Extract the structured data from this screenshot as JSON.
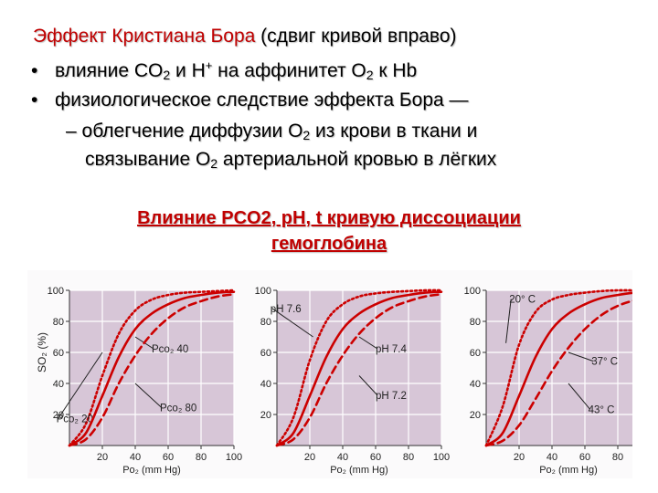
{
  "title": {
    "red": "Эффект Кристиана Бора",
    "black": "(сдвиг кривой вправо)"
  },
  "bullets": [
    {
      "marker": "•",
      "parts": [
        "влияние CO",
        "2",
        " и H",
        "+",
        " на аффинитет O",
        "2",
        " к Hb"
      ]
    },
    {
      "marker": "•",
      "parts": [
        "физиологическое следствие эффекта Бора —"
      ]
    }
  ],
  "subbullet": {
    "marker": "–",
    "line1": [
      "облегчение диффузии O",
      "2",
      " из крови в ткани и"
    ],
    "line2": [
      "связывание O",
      "2",
      " артериальной кровью в лёгких"
    ]
  },
  "subheading": {
    "line1": "Влияние PCO2, pH, t  кривую диссоциации",
    "line2": "гемоглобина"
  },
  "colors": {
    "title_red": "#c00000",
    "curve_red": "#cc0000",
    "panel_bg": "#d7c6d7"
  },
  "figure": {
    "ylabel": "SO₂ (%)",
    "xlabel": "Po₂ (mm Hg)",
    "x_ticks": [
      "20",
      "40",
      "60",
      "80",
      "100"
    ],
    "y_ticks": [
      "20",
      "40",
      "60",
      "80",
      "100"
    ]
  },
  "chart_data": [
    {
      "type": "line",
      "x": [
        0,
        10,
        20,
        30,
        40,
        50,
        60,
        70,
        80,
        90,
        100
      ],
      "xlim": [
        0,
        100
      ],
      "ylim": [
        0,
        100
      ],
      "xlabel": "Po₂ (mm Hg)",
      "ylabel": "SO₂ (%)",
      "series": [
        {
          "name": "Pco₂ 20",
          "style": "dotted",
          "values": [
            0,
            14,
            45,
            72,
            87,
            94,
            97,
            98.5,
            99,
            99.5,
            100
          ]
        },
        {
          "name": "Pco₂ 40",
          "style": "solid",
          "values": [
            0,
            8,
            32,
            57,
            75,
            85,
            91,
            95,
            97,
            98.5,
            99
          ]
        },
        {
          "name": "Pco₂ 80",
          "style": "dashed",
          "values": [
            0,
            4,
            18,
            40,
            58,
            72,
            82,
            89,
            93,
            96,
            97.5
          ]
        }
      ]
    },
    {
      "type": "line",
      "x": [
        0,
        10,
        20,
        30,
        40,
        50,
        60,
        70,
        80,
        90,
        100
      ],
      "xlim": [
        0,
        100
      ],
      "ylim": [
        0,
        100
      ],
      "xlabel": "Po₂ (mm Hg)",
      "ylabel": "",
      "series": [
        {
          "name": "pH 7.6",
          "style": "dotted",
          "values": [
            0,
            18,
            55,
            80,
            91,
            96,
            98,
            99,
            99.5,
            100,
            100
          ]
        },
        {
          "name": "pH 7.4",
          "style": "solid",
          "values": [
            0,
            8,
            32,
            57,
            75,
            85,
            91,
            95,
            97,
            98.5,
            99
          ]
        },
        {
          "name": "pH 7.2",
          "style": "dashed",
          "values": [
            0,
            4,
            18,
            40,
            58,
            72,
            82,
            89,
            93,
            96,
            97.5
          ]
        }
      ]
    },
    {
      "type": "line",
      "x": [
        0,
        10,
        20,
        30,
        40,
        50,
        60,
        70,
        80,
        90,
        100
      ],
      "xlim": [
        0,
        100
      ],
      "ylim": [
        0,
        100
      ],
      "xlabel": "Po₂ (mm Hg)",
      "ylabel": "",
      "series": [
        {
          "name": "20° C",
          "style": "dotted",
          "values": [
            0,
            25,
            65,
            86,
            94,
            97,
            98.5,
            99.5,
            100,
            100,
            100
          ]
        },
        {
          "name": "37° C",
          "style": "solid",
          "values": [
            0,
            8,
            32,
            57,
            75,
            85,
            91,
            95,
            97,
            98.5,
            99
          ]
        },
        {
          "name": "43° C",
          "style": "dashed",
          "values": [
            0,
            3,
            13,
            30,
            48,
            63,
            75,
            84,
            90,
            93.5,
            96
          ]
        }
      ]
    }
  ]
}
